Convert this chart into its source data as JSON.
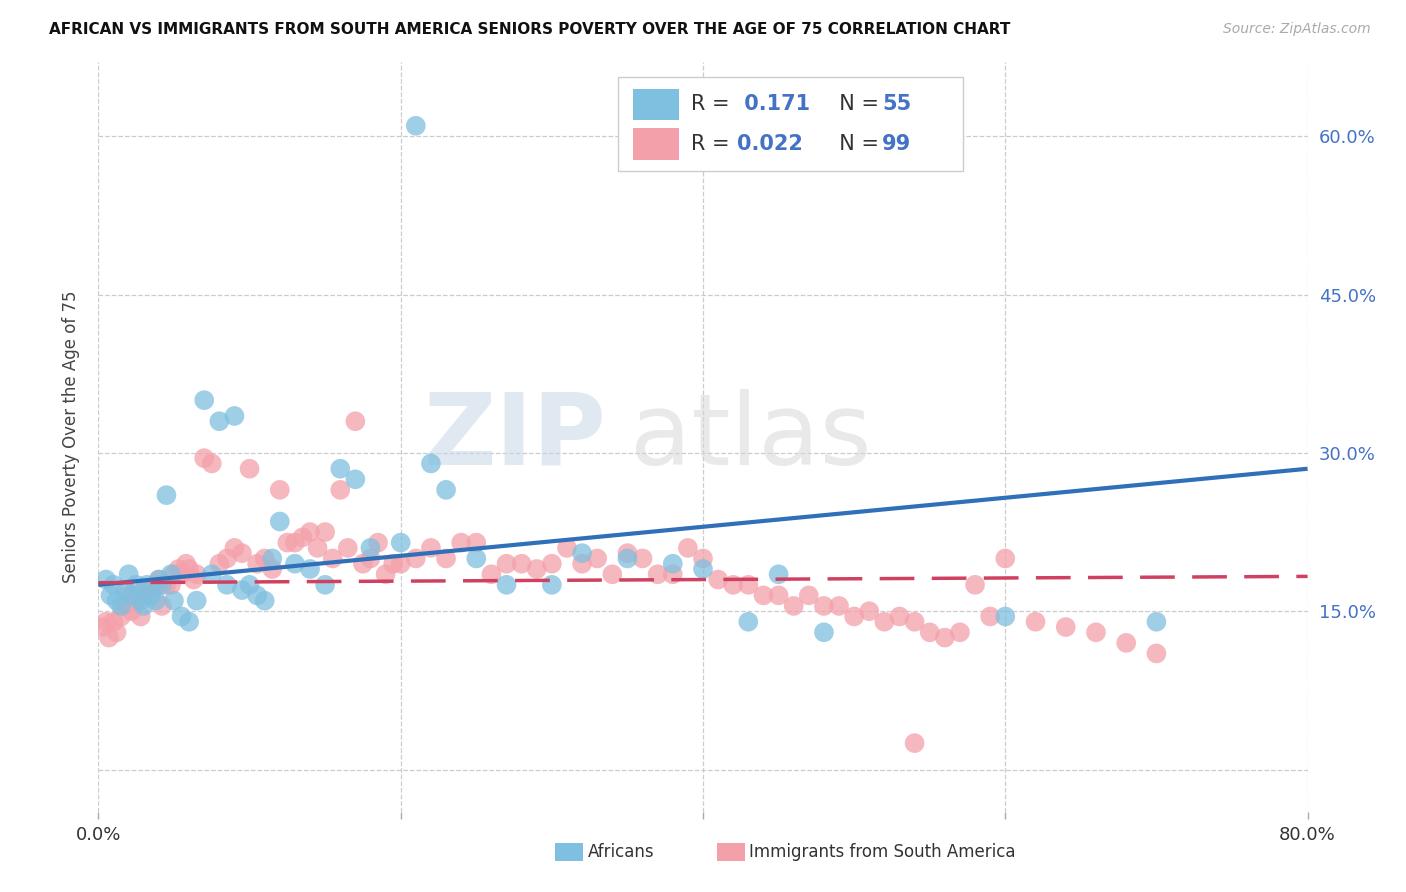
{
  "title": "AFRICAN VS IMMIGRANTS FROM SOUTH AMERICA SENIORS POVERTY OVER THE AGE OF 75 CORRELATION CHART",
  "source": "Source: ZipAtlas.com",
  "ylabel": "Seniors Poverty Over the Age of 75",
  "xlim": [
    0.0,
    0.8
  ],
  "ylim": [
    -0.04,
    0.67
  ],
  "y_ticks": [
    0.0,
    0.15,
    0.3,
    0.45,
    0.6
  ],
  "y_tick_labels": [
    "",
    "15.0%",
    "30.0%",
    "45.0%",
    "60.0%"
  ],
  "africans_R": 0.171,
  "africans_N": 55,
  "immigrants_R": 0.022,
  "immigrants_N": 99,
  "africans_color": "#7fbfdf",
  "immigrants_color": "#f4a0aa",
  "trendline_african_color": "#3070b8",
  "trendline_immigrant_color": "#d04060",
  "legend_label_african": "Africans",
  "legend_label_immigrant": "Immigrants from South America",
  "watermark_zip": "ZIP",
  "watermark_atlas": "atlas",
  "africans_x": [
    0.005,
    0.008,
    0.01,
    0.012,
    0.015,
    0.018,
    0.02,
    0.022,
    0.025,
    0.028,
    0.03,
    0.032,
    0.035,
    0.038,
    0.04,
    0.042,
    0.045,
    0.048,
    0.05,
    0.055,
    0.06,
    0.065,
    0.07,
    0.075,
    0.08,
    0.085,
    0.09,
    0.095,
    0.1,
    0.105,
    0.11,
    0.115,
    0.12,
    0.13,
    0.14,
    0.15,
    0.16,
    0.17,
    0.18,
    0.2,
    0.21,
    0.22,
    0.23,
    0.25,
    0.27,
    0.3,
    0.32,
    0.35,
    0.38,
    0.4,
    0.43,
    0.45,
    0.48,
    0.6,
    0.7
  ],
  "africans_y": [
    0.18,
    0.165,
    0.175,
    0.16,
    0.155,
    0.17,
    0.185,
    0.165,
    0.175,
    0.16,
    0.155,
    0.175,
    0.165,
    0.16,
    0.18,
    0.175,
    0.26,
    0.185,
    0.16,
    0.145,
    0.14,
    0.16,
    0.35,
    0.185,
    0.33,
    0.175,
    0.335,
    0.17,
    0.175,
    0.165,
    0.16,
    0.2,
    0.235,
    0.195,
    0.19,
    0.175,
    0.285,
    0.275,
    0.21,
    0.215,
    0.61,
    0.29,
    0.265,
    0.2,
    0.175,
    0.175,
    0.205,
    0.2,
    0.195,
    0.19,
    0.14,
    0.185,
    0.13,
    0.145,
    0.14
  ],
  "immigrants_x": [
    0.003,
    0.005,
    0.007,
    0.01,
    0.012,
    0.015,
    0.018,
    0.02,
    0.022,
    0.025,
    0.028,
    0.03,
    0.033,
    0.036,
    0.038,
    0.04,
    0.042,
    0.045,
    0.048,
    0.05,
    0.053,
    0.055,
    0.058,
    0.06,
    0.063,
    0.065,
    0.07,
    0.075,
    0.08,
    0.085,
    0.09,
    0.095,
    0.1,
    0.105,
    0.11,
    0.115,
    0.12,
    0.125,
    0.13,
    0.135,
    0.14,
    0.145,
    0.15,
    0.155,
    0.16,
    0.165,
    0.17,
    0.175,
    0.18,
    0.185,
    0.19,
    0.195,
    0.2,
    0.21,
    0.22,
    0.23,
    0.24,
    0.25,
    0.26,
    0.27,
    0.28,
    0.29,
    0.3,
    0.31,
    0.32,
    0.33,
    0.34,
    0.35,
    0.36,
    0.37,
    0.38,
    0.39,
    0.4,
    0.41,
    0.42,
    0.43,
    0.44,
    0.45,
    0.46,
    0.47,
    0.48,
    0.49,
    0.5,
    0.51,
    0.52,
    0.53,
    0.54,
    0.55,
    0.56,
    0.57,
    0.58,
    0.59,
    0.6,
    0.62,
    0.64,
    0.66,
    0.68,
    0.7,
    0.54
  ],
  "immigrants_y": [
    0.135,
    0.14,
    0.125,
    0.14,
    0.13,
    0.145,
    0.155,
    0.165,
    0.15,
    0.16,
    0.145,
    0.17,
    0.165,
    0.17,
    0.175,
    0.18,
    0.155,
    0.175,
    0.175,
    0.185,
    0.19,
    0.185,
    0.195,
    0.19,
    0.18,
    0.185,
    0.295,
    0.29,
    0.195,
    0.2,
    0.21,
    0.205,
    0.285,
    0.195,
    0.2,
    0.19,
    0.265,
    0.215,
    0.215,
    0.22,
    0.225,
    0.21,
    0.225,
    0.2,
    0.265,
    0.21,
    0.33,
    0.195,
    0.2,
    0.215,
    0.185,
    0.195,
    0.195,
    0.2,
    0.21,
    0.2,
    0.215,
    0.215,
    0.185,
    0.195,
    0.195,
    0.19,
    0.195,
    0.21,
    0.195,
    0.2,
    0.185,
    0.205,
    0.2,
    0.185,
    0.185,
    0.21,
    0.2,
    0.18,
    0.175,
    0.175,
    0.165,
    0.165,
    0.155,
    0.165,
    0.155,
    0.155,
    0.145,
    0.15,
    0.14,
    0.145,
    0.14,
    0.13,
    0.125,
    0.13,
    0.175,
    0.145,
    0.2,
    0.14,
    0.135,
    0.13,
    0.12,
    0.11,
    0.025
  ],
  "trendline_african_x0": 0.0,
  "trendline_african_y0": 0.175,
  "trendline_african_x1": 0.8,
  "trendline_african_y1": 0.285,
  "trendline_immigrant_x0": 0.0,
  "trendline_immigrant_y0": 0.177,
  "trendline_immigrant_x1": 0.8,
  "trendline_immigrant_y1": 0.183
}
